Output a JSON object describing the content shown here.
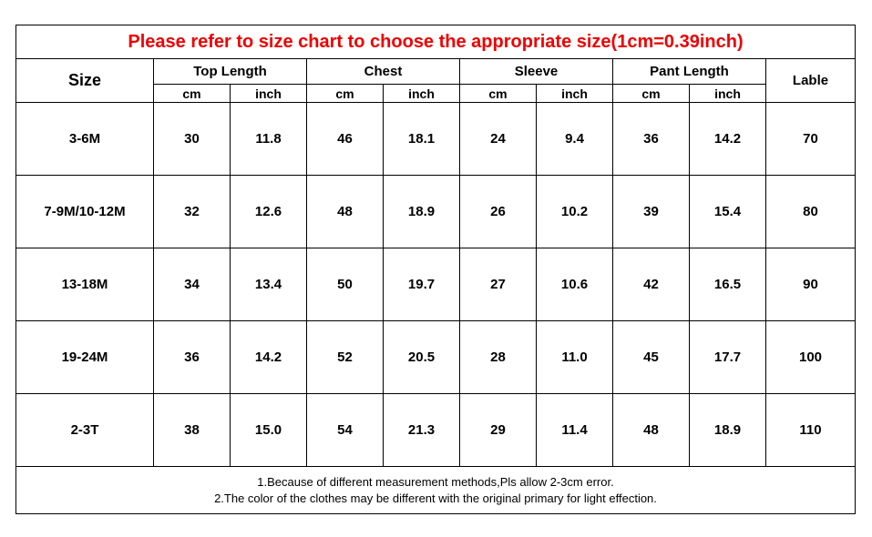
{
  "title": "Please refer to size chart to choose the appropriate size(1cm=0.39inch)",
  "headers": {
    "size": "Size",
    "top_length": "Top Length",
    "chest": "Chest",
    "sleeve": "Sleeve",
    "pant_length": "Pant Length",
    "lable": "Lable",
    "cm": "cm",
    "inch": "inch"
  },
  "rows": [
    {
      "size": "3-6M",
      "top_cm": "30",
      "top_in": "11.8",
      "chest_cm": "46",
      "chest_in": "18.1",
      "sleeve_cm": "24",
      "sleeve_in": "9.4",
      "pant_cm": "36",
      "pant_in": "14.2",
      "lable": "70"
    },
    {
      "size": "7-9M/10-12M",
      "top_cm": "32",
      "top_in": "12.6",
      "chest_cm": "48",
      "chest_in": "18.9",
      "sleeve_cm": "26",
      "sleeve_in": "10.2",
      "pant_cm": "39",
      "pant_in": "15.4",
      "lable": "80"
    },
    {
      "size": "13-18M",
      "top_cm": "34",
      "top_in": "13.4",
      "chest_cm": "50",
      "chest_in": "19.7",
      "sleeve_cm": "27",
      "sleeve_in": "10.6",
      "pant_cm": "42",
      "pant_in": "16.5",
      "lable": "90"
    },
    {
      "size": "19-24M",
      "top_cm": "36",
      "top_in": "14.2",
      "chest_cm": "52",
      "chest_in": "20.5",
      "sleeve_cm": "28",
      "sleeve_in": "11.0",
      "pant_cm": "45",
      "pant_in": "17.7",
      "lable": "100"
    },
    {
      "size": "2-3T",
      "top_cm": "38",
      "top_in": "15.0",
      "chest_cm": "54",
      "chest_in": "21.3",
      "sleeve_cm": "29",
      "sleeve_in": "11.4",
      "pant_cm": "48",
      "pant_in": "18.9",
      "lable": "110"
    }
  ],
  "notes": [
    "1.Because of different measurement methods,Pls allow 2-3cm error.",
    "2.The color of the clothes may be different with the original primary for light effection."
  ],
  "colors": {
    "title": "#ee0000",
    "border": "#000000",
    "text": "#000000"
  }
}
